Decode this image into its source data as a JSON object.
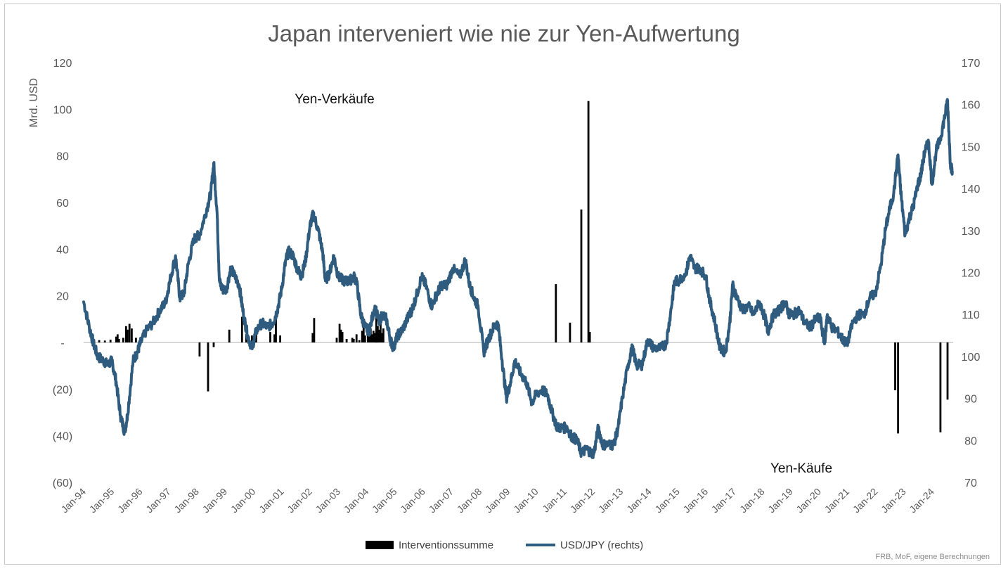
{
  "chart_data": {
    "type": "bar+line",
    "title": "Japan interveniert wie nie zur Yen-Aufwertung",
    "ylabel_left": "Mrd. USD",
    "ylim_left": [
      -60,
      120
    ],
    "yticks_left": [
      "120",
      "100",
      "80",
      "60",
      "40",
      "20",
      "-",
      "(20)",
      "(40)",
      "(60)"
    ],
    "ylim_right": [
      70,
      170
    ],
    "yticks_right": [
      "170",
      "160",
      "150",
      "140",
      "130",
      "120",
      "110",
      "100",
      "90",
      "80",
      "70"
    ],
    "x_range": [
      1994.0,
      2024.75
    ],
    "x_tick_labels": [
      "Jan-94",
      "Jan-95",
      "Jan-96",
      "Jan-97",
      "Jan-98",
      "Jan-99",
      "Jan-00",
      "Jan-01",
      "Jan-02",
      "Jan-03",
      "Jan-04",
      "Jan-05",
      "Jan-06",
      "Jan-07",
      "Jan-08",
      "Jan-09",
      "Jan-10",
      "Jan-11",
      "Jan-12",
      "Jan-13",
      "Jan-14",
      "Jan-15",
      "Jan-16",
      "Jan-17",
      "Jan-18",
      "Jan-19",
      "Jan-20",
      "Jan-21",
      "Jan-22",
      "Jan-23",
      "Jan-24"
    ],
    "annotations": [
      "Yen-Verkäufe",
      "Yen-Käufe"
    ],
    "source": "FRB, MoF, eigene Berechnungen",
    "colors": {
      "bars": "#000000",
      "line": "#2f5c7e",
      "zero_line": "#c8c8c8",
      "title": "#595959"
    },
    "series": [
      {
        "name": "Interventionssumme",
        "type": "bar",
        "points": [
          [
            1994.55,
            1.0
          ],
          [
            1994.75,
            0.8
          ],
          [
            1994.95,
            1.2
          ],
          [
            1995.15,
            2.5
          ],
          [
            1995.2,
            3.5
          ],
          [
            1995.25,
            1.5
          ],
          [
            1995.4,
            2.0
          ],
          [
            1995.5,
            7.0
          ],
          [
            1995.55,
            5.5
          ],
          [
            1995.62,
            8.0
          ],
          [
            1995.7,
            6.0
          ],
          [
            1995.85,
            2.0
          ],
          [
            1996.05,
            1.5
          ],
          [
            1998.1,
            -6.0
          ],
          [
            1998.4,
            -21.0
          ],
          [
            1998.6,
            -2.0
          ],
          [
            1999.15,
            5.5
          ],
          [
            1999.6,
            11.0
          ],
          [
            1999.75,
            3.5
          ],
          [
            1999.95,
            3.0
          ],
          [
            2000.1,
            6.5
          ],
          [
            2000.6,
            4.5
          ],
          [
            2000.75,
            3.5
          ],
          [
            2000.8,
            13.0
          ],
          [
            2000.95,
            3.0
          ],
          [
            2002.1,
            4.0
          ],
          [
            2002.15,
            10.5
          ],
          [
            2002.95,
            2.0
          ],
          [
            2003.05,
            8.0
          ],
          [
            2003.1,
            5.5
          ],
          [
            2003.15,
            4.5
          ],
          [
            2003.3,
            1.5
          ],
          [
            2003.5,
            2.0
          ],
          [
            2003.55,
            1.5
          ],
          [
            2003.65,
            3.5
          ],
          [
            2003.75,
            1.0
          ],
          [
            2003.85,
            5.0
          ],
          [
            2003.9,
            8.5
          ],
          [
            2003.95,
            3.0
          ],
          [
            2004.05,
            8.0
          ],
          [
            2004.1,
            4.0
          ],
          [
            2004.15,
            6.0
          ],
          [
            2004.2,
            3.5
          ],
          [
            2004.25,
            5.0
          ],
          [
            2004.3,
            4.0
          ],
          [
            2004.35,
            15.0
          ],
          [
            2004.4,
            7.0
          ],
          [
            2004.45,
            5.5
          ],
          [
            2004.5,
            12.0
          ],
          [
            2004.55,
            4.0
          ],
          [
            2004.6,
            6.0
          ],
          [
            2010.7,
            25.0
          ],
          [
            2011.2,
            8.5
          ],
          [
            2011.6,
            57.0
          ],
          [
            2011.85,
            103.5
          ],
          [
            2011.9,
            4.5
          ],
          [
            2022.7,
            -20.5
          ],
          [
            2022.8,
            -39.0
          ],
          [
            2024.3,
            -38.5
          ],
          [
            2024.55,
            -24.5
          ]
        ]
      },
      {
        "name": "USD/JPY (rechts)",
        "type": "line",
        "points": [
          [
            1994.0,
            113
          ],
          [
            1994.2,
            107
          ],
          [
            1994.35,
            103
          ],
          [
            1994.5,
            100
          ],
          [
            1994.7,
            99
          ],
          [
            1994.85,
            98
          ],
          [
            1995.0,
            99
          ],
          [
            1995.15,
            94
          ],
          [
            1995.3,
            86
          ],
          [
            1995.45,
            82
          ],
          [
            1995.55,
            86
          ],
          [
            1995.75,
            99
          ],
          [
            1995.9,
            101
          ],
          [
            1996.0,
            103
          ],
          [
            1996.2,
            106
          ],
          [
            1996.45,
            108
          ],
          [
            1996.7,
            111
          ],
          [
            1996.9,
            113
          ],
          [
            1997.05,
            118
          ],
          [
            1997.25,
            124
          ],
          [
            1997.4,
            114
          ],
          [
            1997.55,
            115
          ],
          [
            1997.7,
            122
          ],
          [
            1997.9,
            128
          ],
          [
            1998.1,
            129
          ],
          [
            1998.35,
            135
          ],
          [
            1998.5,
            139
          ],
          [
            1998.6,
            146
          ],
          [
            1998.72,
            134
          ],
          [
            1998.8,
            118
          ],
          [
            1998.9,
            116
          ],
          [
            1999.05,
            116
          ],
          [
            1999.2,
            121
          ],
          [
            1999.35,
            119
          ],
          [
            1999.5,
            117
          ],
          [
            1999.65,
            110
          ],
          [
            1999.8,
            105
          ],
          [
            1999.95,
            102
          ],
          [
            2000.1,
            106
          ],
          [
            2000.3,
            108
          ],
          [
            2000.5,
            107
          ],
          [
            2000.7,
            108
          ],
          [
            2000.85,
            111
          ],
          [
            2001.0,
            116
          ],
          [
            2001.15,
            123
          ],
          [
            2001.25,
            125
          ],
          [
            2001.4,
            124
          ],
          [
            2001.55,
            121
          ],
          [
            2001.7,
            119
          ],
          [
            2001.85,
            123
          ],
          [
            2002.0,
            131
          ],
          [
            2002.12,
            134
          ],
          [
            2002.3,
            130
          ],
          [
            2002.45,
            125
          ],
          [
            2002.55,
            118
          ],
          [
            2002.7,
            120
          ],
          [
            2002.85,
            124
          ],
          [
            2003.0,
            119
          ],
          [
            2003.2,
            118
          ],
          [
            2003.4,
            118
          ],
          [
            2003.55,
            119
          ],
          [
            2003.65,
            118
          ],
          [
            2003.8,
            110
          ],
          [
            2003.95,
            107
          ],
          [
            2004.1,
            106
          ],
          [
            2004.3,
            112
          ],
          [
            2004.45,
            108
          ],
          [
            2004.55,
            110
          ],
          [
            2004.7,
            109
          ],
          [
            2004.85,
            104
          ],
          [
            2004.95,
            102
          ],
          [
            2005.1,
            105
          ],
          [
            2005.25,
            106
          ],
          [
            2005.45,
            109
          ],
          [
            2005.6,
            111
          ],
          [
            2005.75,
            114
          ],
          [
            2005.95,
            119
          ],
          [
            2006.1,
            117
          ],
          [
            2006.3,
            112
          ],
          [
            2006.5,
            115
          ],
          [
            2006.65,
            117
          ],
          [
            2006.85,
            117
          ],
          [
            2007.05,
            121
          ],
          [
            2007.3,
            119
          ],
          [
            2007.5,
            123
          ],
          [
            2007.65,
            117
          ],
          [
            2007.8,
            114
          ],
          [
            2007.95,
            112
          ],
          [
            2008.15,
            101
          ],
          [
            2008.3,
            104
          ],
          [
            2008.5,
            107
          ],
          [
            2008.65,
            108
          ],
          [
            2008.8,
            99
          ],
          [
            2008.95,
            90
          ],
          [
            2009.1,
            94
          ],
          [
            2009.25,
            99
          ],
          [
            2009.45,
            96
          ],
          [
            2009.65,
            94
          ],
          [
            2009.85,
            89
          ],
          [
            2010.0,
            91
          ],
          [
            2010.2,
            92
          ],
          [
            2010.4,
            91
          ],
          [
            2010.55,
            87
          ],
          [
            2010.75,
            83
          ],
          [
            2010.95,
            83
          ],
          [
            2011.1,
            83
          ],
          [
            2011.25,
            81
          ],
          [
            2011.45,
            80
          ],
          [
            2011.6,
            77
          ],
          [
            2011.8,
            78
          ],
          [
            2011.95,
            77
          ],
          [
            2012.05,
            77
          ],
          [
            2012.2,
            83
          ],
          [
            2012.35,
            79
          ],
          [
            2012.55,
            79
          ],
          [
            2012.75,
            79
          ],
          [
            2012.9,
            83
          ],
          [
            2013.05,
            90
          ],
          [
            2013.25,
            98
          ],
          [
            2013.4,
            102
          ],
          [
            2013.55,
            98
          ],
          [
            2013.75,
            98
          ],
          [
            2013.95,
            104
          ],
          [
            2014.15,
            102
          ],
          [
            2014.4,
            102
          ],
          [
            2014.6,
            103
          ],
          [
            2014.75,
            110
          ],
          [
            2014.9,
            118
          ],
          [
            2015.05,
            118
          ],
          [
            2015.3,
            120
          ],
          [
            2015.45,
            124
          ],
          [
            2015.6,
            121
          ],
          [
            2015.8,
            121
          ],
          [
            2016.0,
            119
          ],
          [
            2016.15,
            113
          ],
          [
            2016.3,
            109
          ],
          [
            2016.5,
            102
          ],
          [
            2016.7,
            101
          ],
          [
            2016.85,
            108
          ],
          [
            2016.95,
            117
          ],
          [
            2017.1,
            114
          ],
          [
            2017.3,
            111
          ],
          [
            2017.5,
            112
          ],
          [
            2017.7,
            110
          ],
          [
            2017.9,
            113
          ],
          [
            2018.1,
            109
          ],
          [
            2018.2,
            106
          ],
          [
            2018.4,
            110
          ],
          [
            2018.6,
            111
          ],
          [
            2018.8,
            113
          ],
          [
            2018.95,
            110
          ],
          [
            2019.1,
            110
          ],
          [
            2019.3,
            111
          ],
          [
            2019.5,
            108
          ],
          [
            2019.7,
            107
          ],
          [
            2019.9,
            109
          ],
          [
            2020.05,
            109
          ],
          [
            2020.2,
            103
          ],
          [
            2020.3,
            110
          ],
          [
            2020.45,
            107
          ],
          [
            2020.65,
            106
          ],
          [
            2020.85,
            104
          ],
          [
            2021.0,
            103
          ],
          [
            2021.2,
            108
          ],
          [
            2021.4,
            110
          ],
          [
            2021.6,
            110
          ],
          [
            2021.8,
            114
          ],
          [
            2022.0,
            115
          ],
          [
            2022.2,
            122
          ],
          [
            2022.35,
            130
          ],
          [
            2022.5,
            135
          ],
          [
            2022.65,
            139
          ],
          [
            2022.8,
            148
          ],
          [
            2022.9,
            139
          ],
          [
            2023.05,
            129
          ],
          [
            2023.2,
            133
          ],
          [
            2023.35,
            136
          ],
          [
            2023.5,
            141
          ],
          [
            2023.6,
            143
          ],
          [
            2023.75,
            149
          ],
          [
            2023.88,
            151
          ],
          [
            2024.0,
            141
          ],
          [
            2024.15,
            149
          ],
          [
            2024.3,
            152
          ],
          [
            2024.45,
            157
          ],
          [
            2024.55,
            161
          ],
          [
            2024.65,
            146
          ],
          [
            2024.72,
            144
          ]
        ]
      }
    ]
  }
}
